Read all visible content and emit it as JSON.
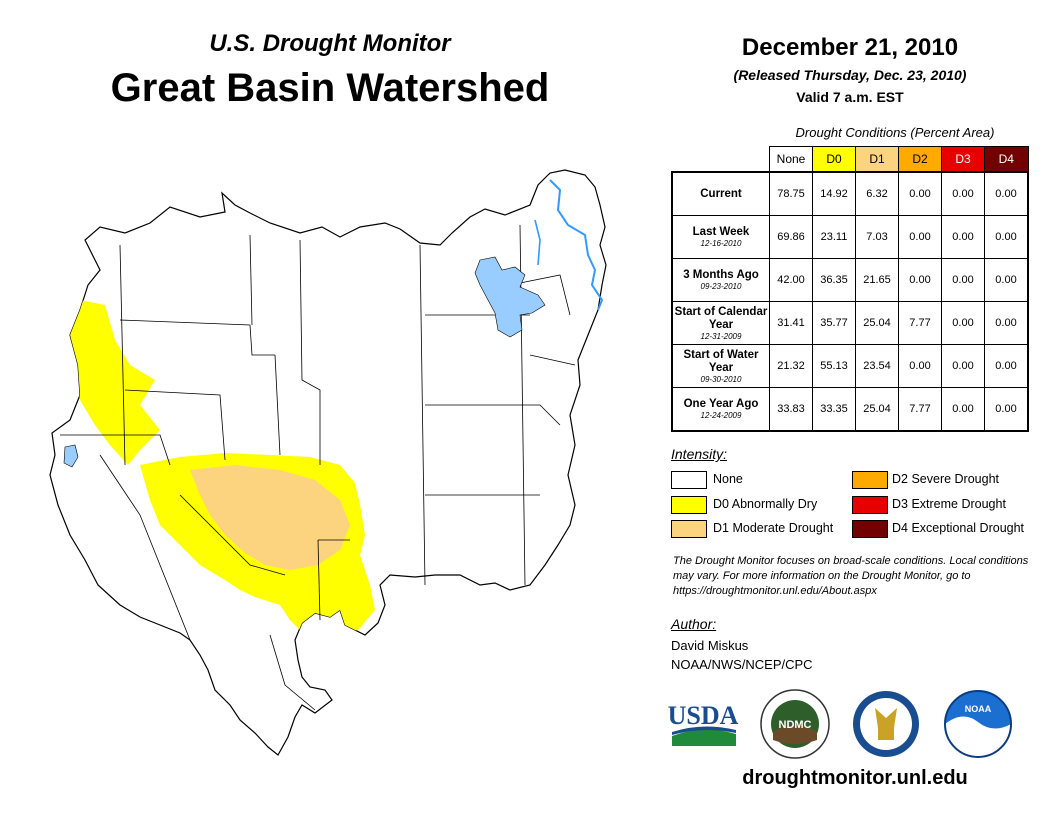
{
  "header": {
    "supertitle": "U.S. Drought Monitor",
    "title": "Great Basin Watershed",
    "date": "December 21, 2010",
    "released": "(Released Thursday, Dec. 23, 2010)",
    "valid": "Valid 7 a.m. EST"
  },
  "table": {
    "caption": "Drought Conditions (Percent Area)",
    "columns": [
      {
        "label": "None",
        "color": "#ffffff"
      },
      {
        "label": "D0",
        "color": "#ffff00"
      },
      {
        "label": "D1",
        "color": "#fcd37f"
      },
      {
        "label": "D2",
        "color": "#ffaa00"
      },
      {
        "label": "D3",
        "color": "#e60000"
      },
      {
        "label": "D4",
        "color": "#730000"
      }
    ],
    "rows": [
      {
        "label": "Current",
        "date": "",
        "values": [
          "78.75",
          "14.92",
          "6.32",
          "0.00",
          "0.00",
          "0.00"
        ]
      },
      {
        "label": "Last Week",
        "date": "12-16-2010",
        "values": [
          "69.86",
          "23.11",
          "7.03",
          "0.00",
          "0.00",
          "0.00"
        ]
      },
      {
        "label": "3 Months Ago",
        "date": "09-23-2010",
        "values": [
          "42.00",
          "36.35",
          "21.65",
          "0.00",
          "0.00",
          "0.00"
        ]
      },
      {
        "label": "Start of Calendar Year",
        "date": "12-31-2009",
        "values": [
          "31.41",
          "35.77",
          "25.04",
          "7.77",
          "0.00",
          "0.00"
        ]
      },
      {
        "label": "Start of Water Year",
        "date": "09-30-2010",
        "values": [
          "21.32",
          "55.13",
          "23.54",
          "0.00",
          "0.00",
          "0.00"
        ]
      },
      {
        "label": "One Year Ago",
        "date": "12-24-2009",
        "values": [
          "33.83",
          "33.35",
          "25.04",
          "7.77",
          "0.00",
          "0.00"
        ]
      }
    ]
  },
  "legend": {
    "heading": "Intensity:",
    "items": [
      {
        "label": "None",
        "color": "#ffffff"
      },
      {
        "label": "D0 Abnormally Dry",
        "color": "#ffff00"
      },
      {
        "label": "D1 Moderate Drought",
        "color": "#fcd37f"
      },
      {
        "label": "D2 Severe Drought",
        "color": "#ffaa00"
      },
      {
        "label": "D3 Extreme Drought",
        "color": "#e60000"
      },
      {
        "label": "D4 Exceptional Drought",
        "color": "#730000"
      }
    ]
  },
  "note": "The Drought Monitor focuses on broad-scale conditions. Local conditions may vary. For more information on the Drought Monitor, go to https://droughtmonitor.unl.edu/About.aspx",
  "author": {
    "heading": "Author:",
    "name": "David Miskus",
    "org": "NOAA/NWS/NCEP/CPC"
  },
  "logos": {
    "usda": "USDA",
    "ndmc": "NDMC",
    "noaa": "NOAA"
  },
  "website": "droughtmonitor.unl.edu",
  "map_colors": {
    "water": "#99ccff",
    "river": "#3399ff",
    "d0": "#ffff00",
    "d1": "#fcd37f",
    "border": "#000000"
  }
}
